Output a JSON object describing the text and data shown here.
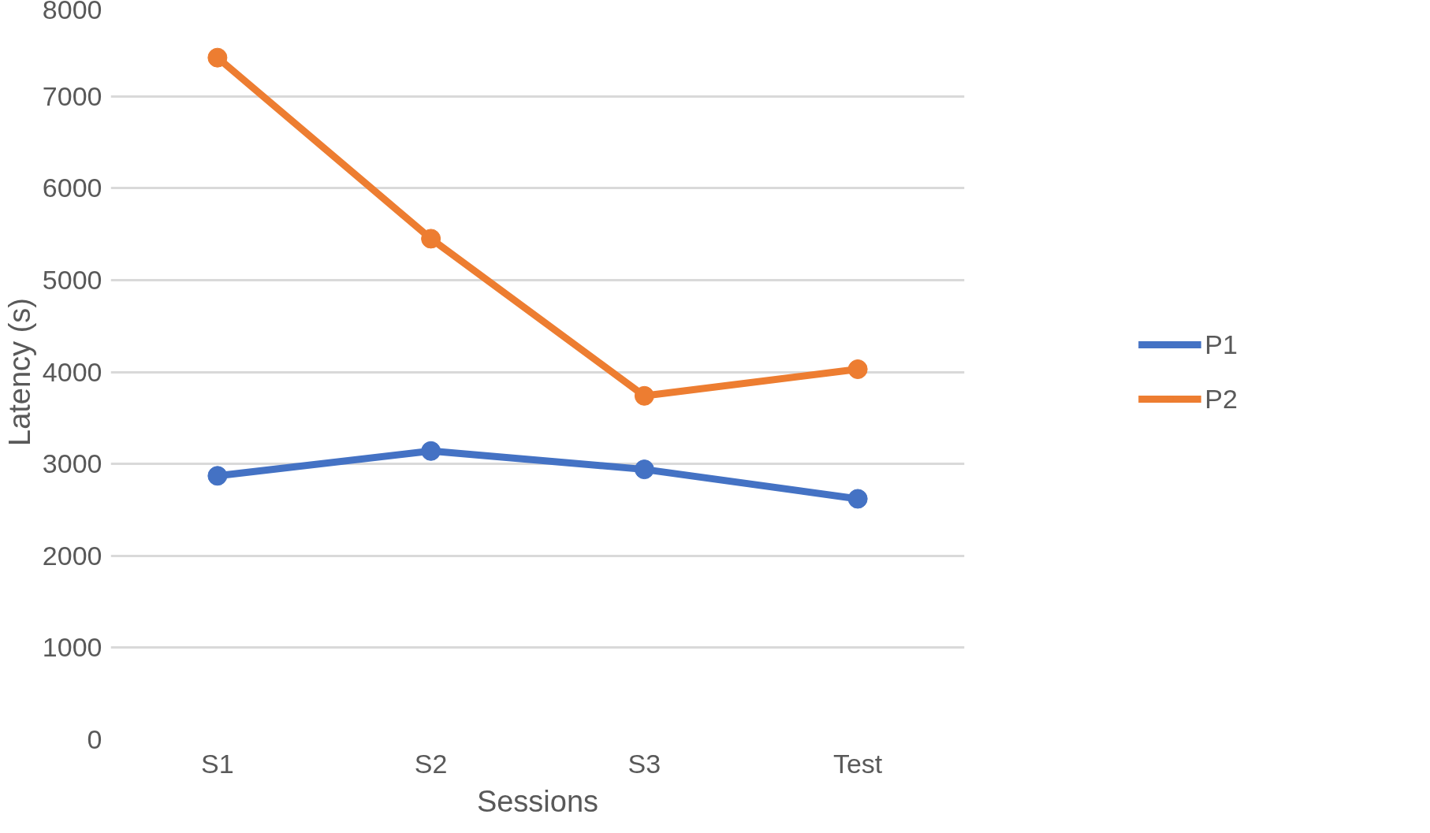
{
  "chart_data": {
    "type": "line",
    "xlabel": "Sessions",
    "ylabel": "Latency (s)",
    "categories": [
      "S1",
      "S2",
      "S3",
      "Test"
    ],
    "series": [
      {
        "name": "P1",
        "color": "#4472c4",
        "values": [
          2870,
          3140,
          2940,
          2620
        ]
      },
      {
        "name": "P2",
        "color": "#ed7d31",
        "values": [
          7420,
          5450,
          3740,
          4030
        ]
      }
    ],
    "ylim": [
      0,
      8000
    ],
    "yticks": [
      0,
      1000,
      2000,
      3000,
      4000,
      5000,
      6000,
      7000,
      8000
    ],
    "grid": "y",
    "legend": "right",
    "marker": "circle",
    "line_style": "solid"
  }
}
